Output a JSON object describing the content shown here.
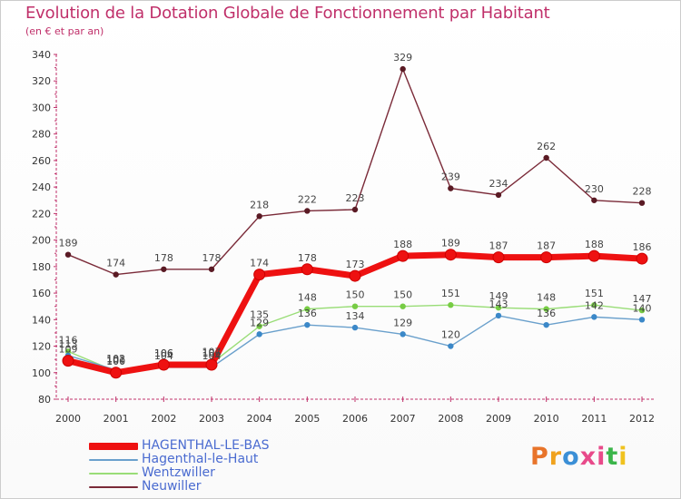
{
  "header": {
    "title": "Evolution de la Dotation Globale de Fonctionnement par Habitant",
    "subtitle": "(en € et par an)"
  },
  "logo": {
    "text": "Proxiti",
    "colors": [
      "#e8742a",
      "#f0a21e",
      "#3b8fd6",
      "#e84a8a",
      "#e84a8a",
      "#3bb54a",
      "#f0c21e"
    ]
  },
  "chart_data": {
    "type": "line",
    "title": "Evolution de la Dotation Globale de Fonctionnement par Habitant",
    "subtitle": "(en € et par an)",
    "xlabel": "",
    "ylabel": "",
    "ylim": [
      80,
      340
    ],
    "yticks": [
      80,
      100,
      120,
      140,
      160,
      180,
      200,
      220,
      240,
      260,
      280,
      300,
      320,
      340
    ],
    "grid": false,
    "categories": [
      "2000",
      "2001",
      "2002",
      "2003",
      "2004",
      "2005",
      "2006",
      "2007",
      "2008",
      "2009",
      "2010",
      "2011",
      "2012"
    ],
    "series": [
      {
        "name": "Neuwiller",
        "color": "#7a2a38",
        "marker": "#5a1a24",
        "values": [
          189,
          174,
          178,
          178,
          218,
          222,
          223,
          329,
          239,
          234,
          262,
          230,
          228
        ]
      },
      {
        "name": "Wentzwiller",
        "color": "#99dd77",
        "marker": "#77cc44",
        "values": [
          116,
          101,
          106,
          107,
          135,
          148,
          150,
          150,
          151,
          149,
          148,
          151,
          147
        ]
      },
      {
        "name": "Hagenthal-le-Haut",
        "color": "#6aa0cc",
        "marker": "#3b88c8",
        "values": [
          113,
          102,
          104,
          104,
          129,
          136,
          134,
          129,
          120,
          143,
          136,
          142,
          140
        ]
      },
      {
        "name": "HAGENTHAL-LE-BAS",
        "color": "#ee1111",
        "marker": "#ee1111",
        "values": [
          109,
          100,
          106,
          106,
          174,
          178,
          173,
          188,
          189,
          187,
          187,
          188,
          186
        ]
      }
    ],
    "legend_order": [
      "HAGENTHAL-LE-BAS",
      "Hagenthal-le-Haut",
      "Wentzwiller",
      "Neuwiller"
    ],
    "legend_position": "bottom-left"
  }
}
